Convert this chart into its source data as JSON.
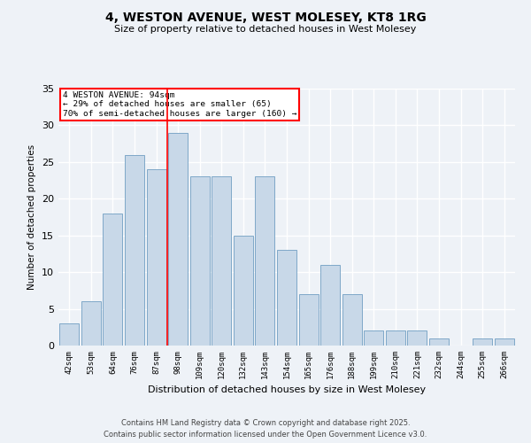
{
  "title_line1": "4, WESTON AVENUE, WEST MOLESEY, KT8 1RG",
  "title_line2": "Size of property relative to detached houses in West Molesey",
  "xlabel": "Distribution of detached houses by size in West Molesey",
  "ylabel": "Number of detached properties",
  "categories": [
    "42sqm",
    "53sqm",
    "64sqm",
    "76sqm",
    "87sqm",
    "98sqm",
    "109sqm",
    "120sqm",
    "132sqm",
    "143sqm",
    "154sqm",
    "165sqm",
    "176sqm",
    "188sqm",
    "199sqm",
    "210sqm",
    "221sqm",
    "232sqm",
    "244sqm",
    "255sqm",
    "266sqm"
  ],
  "values": [
    3,
    6,
    18,
    26,
    24,
    29,
    23,
    23,
    15,
    23,
    13,
    7,
    11,
    7,
    2,
    2,
    2,
    1,
    0,
    1,
    1
  ],
  "bar_color": "#c8d8e8",
  "bar_edge_color": "#7fa8c8",
  "red_line_index": 5,
  "annotation_text": "4 WESTON AVENUE: 94sqm\n← 29% of detached houses are smaller (65)\n70% of semi-detached houses are larger (160) →",
  "annotation_box_color": "white",
  "annotation_box_edge": "red",
  "ylim": [
    0,
    35
  ],
  "yticks": [
    0,
    5,
    10,
    15,
    20,
    25,
    30,
    35
  ],
  "bg_color": "#eef2f7",
  "grid_color": "white",
  "footer_line1": "Contains HM Land Registry data © Crown copyright and database right 2025.",
  "footer_line2": "Contains public sector information licensed under the Open Government Licence v3.0."
}
